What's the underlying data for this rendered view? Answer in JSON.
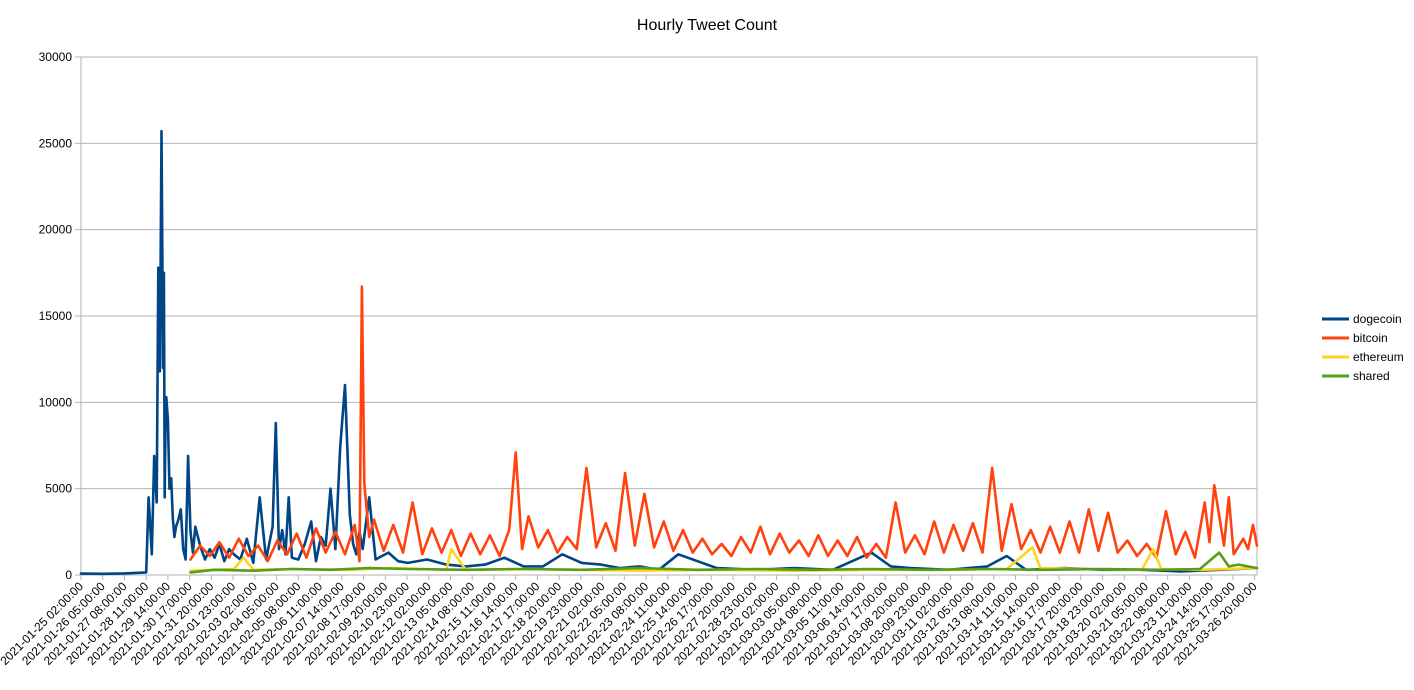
{
  "chart_data": {
    "type": "line",
    "title": "Hourly Tweet Count",
    "xlabel": "",
    "ylabel": "",
    "ylim": [
      0,
      30000
    ],
    "yticks": [
      0,
      5000,
      10000,
      15000,
      20000,
      25000,
      30000
    ],
    "grid": true,
    "legend_position": "right",
    "x_start": "2021-01-25 02:00:00",
    "x_end": "2021-03-26 23:00:00",
    "x_step_hours": 1,
    "categories": [
      "2021-01-25 02:00:00",
      "2021-01-26 05:00:00",
      "2021-01-27 08:00:00",
      "2021-01-28 11:00:00",
      "2021-01-29 14:00:00",
      "2021-01-30 17:00:00",
      "2021-01-31 20:00:00",
      "2021-02-01 23:00:00",
      "2021-02-03 02:00:00",
      "2021-02-04 05:00:00",
      "2021-02-05 08:00:00",
      "2021-02-06 11:00:00",
      "2021-02-07 14:00:00",
      "2021-02-08 17:00:00",
      "2021-02-09 20:00:00",
      "2021-02-10 23:00:00",
      "2021-02-12 02:00:00",
      "2021-02-13 05:00:00",
      "2021-02-14 08:00:00",
      "2021-02-15 11:00:00",
      "2021-02-16 14:00:00",
      "2021-02-17 17:00:00",
      "2021-02-18 20:00:00",
      "2021-02-19 23:00:00",
      "2021-02-21 02:00:00",
      "2021-02-22 05:00:00",
      "2021-02-23 08:00:00",
      "2021-02-24 11:00:00",
      "2021-02-25 14:00:00",
      "2021-02-26 17:00:00",
      "2021-02-27 20:00:00",
      "2021-02-28 23:00:00",
      "2021-03-02 02:00:00",
      "2021-03-03 05:00:00",
      "2021-03-04 08:00:00",
      "2021-03-05 11:00:00",
      "2021-03-06 14:00:00",
      "2021-03-07 17:00:00",
      "2021-03-08 20:00:00",
      "2021-03-09 23:00:00",
      "2021-03-11 02:00:00",
      "2021-03-12 05:00:00",
      "2021-03-13 08:00:00",
      "2021-03-14 11:00:00",
      "2021-03-15 14:00:00",
      "2021-03-16 17:00:00",
      "2021-03-17 20:00:00",
      "2021-03-18 23:00:00",
      "2021-03-20 02:00:00",
      "2021-03-21 05:00:00",
      "2021-03-22 08:00:00",
      "2021-03-23 11:00:00",
      "2021-03-24 14:00:00",
      "2021-03-25 17:00:00",
      "2021-03-26 20:00:00"
    ],
    "series": [
      {
        "name": "dogecoin",
        "color": "#004586",
        "x": [
          "2021-01-25 02:00:00",
          "2021-01-26 05:00:00",
          "2021-01-27 08:00:00",
          "2021-01-28 11:00:00",
          "2021-01-28 14:00:00",
          "2021-01-28 18:00:00",
          "2021-01-28 21:00:00",
          "2021-01-29 00:00:00",
          "2021-01-29 02:00:00",
          "2021-01-29 04:00:00",
          "2021-01-29 06:00:00",
          "2021-01-29 08:00:00",
          "2021-01-29 09:00:00",
          "2021-01-29 10:00:00",
          "2021-01-29 11:00:00",
          "2021-01-29 12:00:00",
          "2021-01-29 14:00:00",
          "2021-01-29 16:00:00",
          "2021-01-29 18:00:00",
          "2021-01-29 20:00:00",
          "2021-01-29 22:00:00",
          "2021-01-30 00:00:00",
          "2021-01-30 03:00:00",
          "2021-01-30 06:00:00",
          "2021-01-30 09:00:00",
          "2021-01-30 12:00:00",
          "2021-01-30 15:00:00",
          "2021-01-30 18:00:00",
          "2021-01-30 21:00:00",
          "2021-01-31 00:00:00",
          "2021-01-31 06:00:00",
          "2021-01-31 12:00:00",
          "2021-01-31 18:00:00",
          "2021-02-01 00:00:00",
          "2021-02-01 06:00:00",
          "2021-02-01 12:00:00",
          "2021-02-01 18:00:00",
          "2021-02-02 00:00:00",
          "2021-02-02 08:00:00",
          "2021-02-02 16:00:00",
          "2021-02-03 00:00:00",
          "2021-02-03 08:00:00",
          "2021-02-03 16:00:00",
          "2021-02-04 00:00:00",
          "2021-02-04 04:00:00",
          "2021-02-04 08:00:00",
          "2021-02-04 12:00:00",
          "2021-02-04 16:00:00",
          "2021-02-04 20:00:00",
          "2021-02-05 00:00:00",
          "2021-02-05 08:00:00",
          "2021-02-05 16:00:00",
          "2021-02-06 00:00:00",
          "2021-02-06 06:00:00",
          "2021-02-06 12:00:00",
          "2021-02-06 18:00:00",
          "2021-02-07 00:00:00",
          "2021-02-07 06:00:00",
          "2021-02-07 12:00:00",
          "2021-02-07 18:00:00",
          "2021-02-08 00:00:00",
          "2021-02-08 04:00:00",
          "2021-02-08 08:00:00",
          "2021-02-08 12:00:00",
          "2021-02-08 16:00:00",
          "2021-02-09 00:00:00",
          "2021-02-09 08:00:00",
          "2021-02-09 16:00:00",
          "2021-02-10 00:00:00",
          "2021-02-10 12:00:00",
          "2021-02-11 00:00:00",
          "2021-02-12 00:00:00",
          "2021-02-13 00:00:00",
          "2021-02-14 00:00:00",
          "2021-02-15 00:00:00",
          "2021-02-16 00:00:00",
          "2021-02-17 00:00:00",
          "2021-02-18 00:00:00",
          "2021-02-19 00:00:00",
          "2021-02-20 00:00:00",
          "2021-02-21 00:00:00",
          "2021-02-22 00:00:00",
          "2021-02-23 00:00:00",
          "2021-02-24 00:00:00",
          "2021-02-25 00:00:00",
          "2021-02-27 00:00:00",
          "2021-03-01 00:00:00",
          "2021-03-03 00:00:00",
          "2021-03-05 00:00:00",
          "2021-03-07 00:00:00",
          "2021-03-08 00:00:00",
          "2021-03-09 00:00:00",
          "2021-03-11 00:00:00",
          "2021-03-13 00:00:00",
          "2021-03-14 00:00:00",
          "2021-03-15 00:00:00",
          "2021-03-17 00:00:00",
          "2021-03-19 00:00:00",
          "2021-03-21 00:00:00",
          "2021-03-23 00:00:00",
          "2021-03-25 00:00:00",
          "2021-03-26 23:00:00"
        ],
        "values": [
          80,
          70,
          90,
          150,
          4500,
          1200,
          6900,
          4200,
          17800,
          11800,
          25700,
          12000,
          17500,
          4500,
          8800,
          10300,
          9000,
          5000,
          5600,
          3300,
          2200,
          2800,
          3200,
          3800,
          1500,
          900,
          6900,
          2500,
          1300,
          2800,
          1700,
          900,
          1500,
          1000,
          1800,
          800,
          1500,
          1200,
          900,
          2100,
          700,
          4500,
          900,
          2800,
          8800,
          1500,
          2600,
          1200,
          4500,
          1000,
          900,
          1800,
          3100,
          800,
          2200,
          1700,
          5000,
          1500,
          7400,
          11000,
          3500,
          1800,
          1200,
          2500,
          1500,
          4500,
          900,
          1100,
          1300,
          800,
          700,
          900,
          600,
          500,
          600,
          1000,
          500,
          500,
          1200,
          700,
          600,
          400,
          500,
          300,
          1200,
          400,
          300,
          400,
          300,
          1300,
          500,
          400,
          300,
          500,
          1100,
          300,
          400,
          300,
          300,
          200,
          300,
          400
        ]
      },
      {
        "name": "bitcoin",
        "color": "#ff420e",
        "x": [
          "2021-01-30 18:00:00",
          "2021-01-31 06:00:00",
          "2021-01-31 18:00:00",
          "2021-02-01 06:00:00",
          "2021-02-01 18:00:00",
          "2021-02-02 06:00:00",
          "2021-02-02 18:00:00",
          "2021-02-03 06:00:00",
          "2021-02-03 18:00:00",
          "2021-02-04 06:00:00",
          "2021-02-04 18:00:00",
          "2021-02-05 06:00:00",
          "2021-02-05 18:00:00",
          "2021-02-06 06:00:00",
          "2021-02-06 18:00:00",
          "2021-02-07 06:00:00",
          "2021-02-07 18:00:00",
          "2021-02-08 06:00:00",
          "2021-02-08 12:00:00",
          "2021-02-08 15:00:00",
          "2021-02-08 18:00:00",
          "2021-02-09 00:00:00",
          "2021-02-09 06:00:00",
          "2021-02-09 18:00:00",
          "2021-02-10 06:00:00",
          "2021-02-10 18:00:00",
          "2021-02-11 06:00:00",
          "2021-02-11 18:00:00",
          "2021-02-12 06:00:00",
          "2021-02-12 18:00:00",
          "2021-02-13 06:00:00",
          "2021-02-13 18:00:00",
          "2021-02-14 06:00:00",
          "2021-02-14 18:00:00",
          "2021-02-15 06:00:00",
          "2021-02-15 18:00:00",
          "2021-02-16 06:00:00",
          "2021-02-16 14:00:00",
          "2021-02-16 22:00:00",
          "2021-02-17 06:00:00",
          "2021-02-17 18:00:00",
          "2021-02-18 06:00:00",
          "2021-02-18 18:00:00",
          "2021-02-19 06:00:00",
          "2021-02-19 18:00:00",
          "2021-02-20 06:00:00",
          "2021-02-20 18:00:00",
          "2021-02-21 06:00:00",
          "2021-02-21 18:00:00",
          "2021-02-22 06:00:00",
          "2021-02-22 18:00:00",
          "2021-02-23 06:00:00",
          "2021-02-23 18:00:00",
          "2021-02-24 06:00:00",
          "2021-02-24 18:00:00",
          "2021-02-25 06:00:00",
          "2021-02-25 18:00:00",
          "2021-02-26 06:00:00",
          "2021-02-26 18:00:00",
          "2021-02-27 06:00:00",
          "2021-02-27 18:00:00",
          "2021-02-28 06:00:00",
          "2021-02-28 18:00:00",
          "2021-03-01 06:00:00",
          "2021-03-01 18:00:00",
          "2021-03-02 06:00:00",
          "2021-03-02 18:00:00",
          "2021-03-03 06:00:00",
          "2021-03-03 18:00:00",
          "2021-03-04 06:00:00",
          "2021-03-04 18:00:00",
          "2021-03-05 06:00:00",
          "2021-03-05 18:00:00",
          "2021-03-06 06:00:00",
          "2021-03-06 18:00:00",
          "2021-03-07 06:00:00",
          "2021-03-07 18:00:00",
          "2021-03-08 06:00:00",
          "2021-03-08 18:00:00",
          "2021-03-09 06:00:00",
          "2021-03-09 18:00:00",
          "2021-03-10 06:00:00",
          "2021-03-10 18:00:00",
          "2021-03-11 06:00:00",
          "2021-03-11 18:00:00",
          "2021-03-12 06:00:00",
          "2021-03-12 18:00:00",
          "2021-03-13 06:00:00",
          "2021-03-13 18:00:00",
          "2021-03-14 06:00:00",
          "2021-03-14 18:00:00",
          "2021-03-15 06:00:00",
          "2021-03-15 18:00:00",
          "2021-03-16 06:00:00",
          "2021-03-16 18:00:00",
          "2021-03-17 06:00:00",
          "2021-03-17 18:00:00",
          "2021-03-18 06:00:00",
          "2021-03-18 18:00:00",
          "2021-03-19 06:00:00",
          "2021-03-19 18:00:00",
          "2021-03-20 06:00:00",
          "2021-03-20 18:00:00",
          "2021-03-21 06:00:00",
          "2021-03-21 18:00:00",
          "2021-03-22 06:00:00",
          "2021-03-22 18:00:00",
          "2021-03-23 06:00:00",
          "2021-03-23 18:00:00",
          "2021-03-24 06:00:00",
          "2021-03-24 12:00:00",
          "2021-03-24 18:00:00",
          "2021-03-25 06:00:00",
          "2021-03-25 12:00:00",
          "2021-03-25 18:00:00",
          "2021-03-26 06:00:00",
          "2021-03-26 12:00:00",
          "2021-03-26 18:00:00",
          "2021-03-26 23:00:00"
        ],
        "values": [
          900,
          1700,
          1100,
          1900,
          1000,
          2100,
          1100,
          1700,
          800,
          2000,
          1200,
          2400,
          1000,
          2700,
          1300,
          2500,
          1200,
          2900,
          800,
          16700,
          5300,
          2200,
          3200,
          1400,
          2900,
          1300,
          4200,
          1200,
          2700,
          1300,
          2600,
          1100,
          2400,
          1200,
          2300,
          1100,
          2600,
          7100,
          1500,
          3400,
          1600,
          2600,
          1300,
          2200,
          1500,
          6200,
          1600,
          3000,
          1400,
          5900,
          1700,
          4700,
          1600,
          3100,
          1400,
          2600,
          1300,
          2100,
          1200,
          1800,
          1100,
          2200,
          1300,
          2800,
          1200,
          2400,
          1300,
          2000,
          1100,
          2300,
          1100,
          2000,
          1100,
          2200,
          1000,
          1800,
          1000,
          4200,
          1300,
          2300,
          1200,
          3100,
          1300,
          2900,
          1400,
          3000,
          1300,
          6200,
          1400,
          4100,
          1500,
          2600,
          1300,
          2800,
          1300,
          3100,
          1300,
          3800,
          1400,
          3600,
          1300,
          2000,
          1100,
          1800,
          1000,
          3700,
          1200,
          2500,
          1000,
          4200,
          1900,
          5200,
          1700,
          4500,
          1200,
          2100,
          1500,
          2900,
          1700
        ]
      },
      {
        "name": "ethereum",
        "color": "#ffd320",
        "x": [
          "2021-01-30 18:00:00",
          "2021-02-02 00:00:00",
          "2021-02-02 12:00:00",
          "2021-02-03 00:00:00",
          "2021-02-05 00:00:00",
          "2021-02-08 00:00:00",
          "2021-02-10 00:00:00",
          "2021-02-12 00:00:00",
          "2021-02-13 00:00:00",
          "2021-02-13 06:00:00",
          "2021-02-14 00:00:00",
          "2021-02-17 00:00:00",
          "2021-02-20 00:00:00",
          "2021-02-23 00:00:00",
          "2021-02-27 00:00:00",
          "2021-03-03 00:00:00",
          "2021-03-07 00:00:00",
          "2021-03-11 00:00:00",
          "2021-03-14 00:00:00",
          "2021-03-15 08:00:00",
          "2021-03-15 18:00:00",
          "2021-03-18 00:00:00",
          "2021-03-21 00:00:00",
          "2021-03-21 14:00:00",
          "2021-03-22 00:00:00",
          "2021-03-24 00:00:00",
          "2021-03-26 23:00:00"
        ],
        "values": [
          250,
          350,
          1000,
          300,
          350,
          300,
          400,
          350,
          300,
          1500,
          300,
          350,
          300,
          250,
          300,
          250,
          300,
          300,
          350,
          1600,
          400,
          350,
          300,
          1500,
          350,
          300,
          400
        ]
      },
      {
        "name": "shared",
        "color": "#579d1c",
        "x": [
          "2021-01-30 18:00:00",
          "2021-02-01 00:00:00",
          "2021-02-03 00:00:00",
          "2021-02-05 00:00:00",
          "2021-02-07 00:00:00",
          "2021-02-09 00:00:00",
          "2021-02-11 00:00:00",
          "2021-02-14 00:00:00",
          "2021-02-17 00:00:00",
          "2021-02-20 00:00:00",
          "2021-02-23 00:00:00",
          "2021-02-26 00:00:00",
          "2021-03-01 00:00:00",
          "2021-03-04 00:00:00",
          "2021-03-07 00:00:00",
          "2021-03-10 00:00:00",
          "2021-03-13 00:00:00",
          "2021-03-16 00:00:00",
          "2021-03-19 00:00:00",
          "2021-03-22 00:00:00",
          "2021-03-24 00:00:00",
          "2021-03-25 00:00:00",
          "2021-03-25 12:00:00",
          "2021-03-26 00:00:00",
          "2021-03-26 23:00:00"
        ],
        "values": [
          150,
          300,
          250,
          350,
          300,
          400,
          350,
          300,
          350,
          300,
          400,
          300,
          350,
          300,
          350,
          300,
          350,
          300,
          350,
          300,
          350,
          1300,
          500,
          600,
          400
        ]
      }
    ]
  }
}
